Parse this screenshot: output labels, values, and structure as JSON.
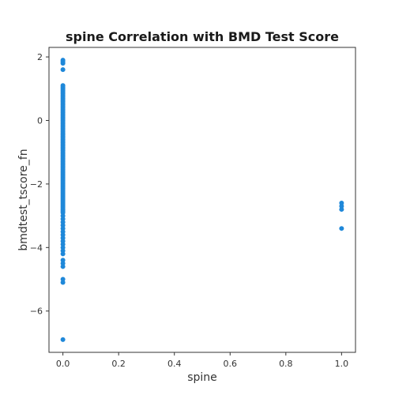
{
  "chart_data": {
    "type": "scatter",
    "title": "spine Correlation with BMD Test Score",
    "xlabel": "spine",
    "ylabel": "bmdtest_tscore_fn",
    "xlim": [
      -0.05,
      1.05
    ],
    "ylim": [
      -7.3,
      2.3
    ],
    "xticks": [
      0.0,
      0.2,
      0.4,
      0.6,
      0.8,
      1.0
    ],
    "xtick_labels": [
      "0.0",
      "0.2",
      "0.4",
      "0.6",
      "0.8",
      "1.0"
    ],
    "yticks": [
      -6,
      -4,
      -2,
      0,
      2
    ],
    "ytick_labels": [
      "−6",
      "−4",
      "−2",
      "0",
      "2"
    ],
    "grid": false,
    "point_color": "#1f88d9",
    "series": [
      {
        "x": [
          0,
          0,
          0,
          0,
          0,
          0,
          0,
          0,
          0,
          0,
          0,
          0,
          0,
          0,
          0,
          0,
          0,
          0,
          0,
          0,
          0,
          0,
          0,
          0,
          0,
          0,
          0,
          0,
          0,
          0,
          0,
          0,
          0,
          0,
          0,
          0,
          0,
          0,
          0,
          0,
          0,
          0,
          0,
          0,
          0,
          0,
          0,
          0,
          0,
          0,
          0,
          0,
          0,
          0,
          0,
          0,
          0,
          0,
          0,
          0,
          0,
          0,
          0,
          0,
          0,
          0,
          0,
          0,
          0,
          0,
          0,
          0,
          0,
          0,
          0,
          0,
          0,
          0,
          0,
          0,
          0,
          0,
          0,
          0,
          0,
          0,
          0,
          0,
          0,
          0,
          0,
          0,
          0,
          0,
          0,
          0,
          0,
          0,
          0,
          0,
          0,
          0,
          0,
          0,
          1,
          1,
          1,
          1
        ],
        "y": [
          1.9,
          1.85,
          1.8,
          1.6,
          1.1,
          1.05,
          1.0,
          0.9,
          0.8,
          0.7,
          0.6,
          0.5,
          0.4,
          0.3,
          0.2,
          0.1,
          0.0,
          -0.1,
          -0.2,
          -0.3,
          -0.4,
          -0.5,
          -0.6,
          -0.7,
          -0.8,
          -0.9,
          -1.0,
          -1.1,
          -1.2,
          -1.3,
          -1.4,
          -1.5,
          -1.6,
          -1.7,
          -1.8,
          -1.9,
          -2.0,
          -2.1,
          -2.2,
          -2.3,
          -2.4,
          -2.5,
          -2.6,
          -2.7,
          -2.8,
          -2.9,
          -3.0,
          -3.1,
          -3.2,
          -3.3,
          -3.4,
          -3.5,
          -3.6,
          -3.7,
          -3.8,
          -3.9,
          -4.0,
          -4.1,
          -4.2,
          -4.4,
          -4.5,
          -4.6,
          -5.0,
          -5.1,
          -6.9,
          0.95,
          0.85,
          0.75,
          0.65,
          0.55,
          0.45,
          0.35,
          0.25,
          0.15,
          0.05,
          -0.05,
          -0.15,
          -0.25,
          -0.35,
          -0.45,
          -0.55,
          -0.65,
          -0.75,
          -0.85,
          -0.95,
          -1.05,
          -1.15,
          -1.25,
          -1.35,
          -1.45,
          -1.55,
          -1.65,
          -1.75,
          -1.85,
          -1.95,
          -2.05,
          -2.15,
          -2.25,
          -2.35,
          -2.45,
          -2.55,
          -2.65,
          -2.75,
          -2.85,
          -2.6,
          -2.7,
          -2.8,
          -3.4
        ]
      }
    ]
  }
}
